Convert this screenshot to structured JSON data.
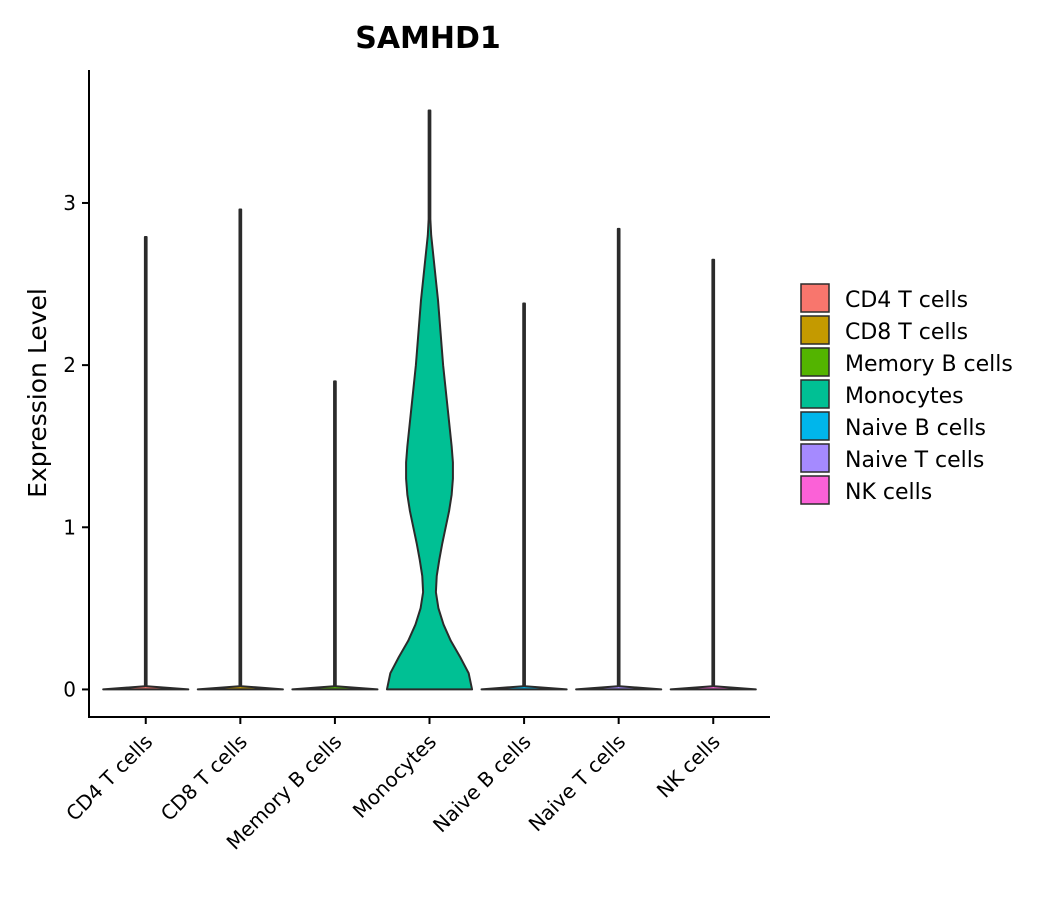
{
  "chart_data": {
    "type": "violin",
    "title": "SAMHD1",
    "xlabel": "",
    "ylabel": "Expression Level",
    "ylim": [
      -0.17,
      3.82
    ],
    "yticks": [
      0,
      1,
      2,
      3
    ],
    "ytick_labels": [
      "0",
      "1",
      "2",
      "3"
    ],
    "legend_position": "right",
    "categories": [
      "CD4 T cells",
      "CD8 T cells",
      "Memory B cells",
      "Monocytes",
      "Naive B cells",
      "Naive T cells",
      "NK cells"
    ],
    "colors": [
      "#F8766D",
      "#C49A00",
      "#53B400",
      "#00C094",
      "#00B6EB",
      "#A58AFF",
      "#FB61D7"
    ],
    "max_values": [
      2.79,
      2.96,
      1.9,
      3.57,
      2.38,
      2.84,
      2.65
    ],
    "density_profiles": [
      [
        [
          0,
          1.0
        ],
        [
          0.02,
          0.02
        ],
        [
          2.79,
          0.02
        ]
      ],
      [
        [
          0,
          1.0
        ],
        [
          0.02,
          0.02
        ],
        [
          2.96,
          0.02
        ]
      ],
      [
        [
          0,
          1.0
        ],
        [
          0.02,
          0.02
        ],
        [
          1.9,
          0.02
        ]
      ],
      [
        [
          0,
          1.0
        ],
        [
          0.1,
          0.92
        ],
        [
          0.2,
          0.72
        ],
        [
          0.3,
          0.5
        ],
        [
          0.4,
          0.33
        ],
        [
          0.5,
          0.21
        ],
        [
          0.6,
          0.15
        ],
        [
          0.7,
          0.17
        ],
        [
          0.8,
          0.23
        ],
        [
          0.9,
          0.3
        ],
        [
          1.0,
          0.38
        ],
        [
          1.1,
          0.46
        ],
        [
          1.2,
          0.52
        ],
        [
          1.3,
          0.55
        ],
        [
          1.4,
          0.55
        ],
        [
          1.5,
          0.52
        ],
        [
          1.6,
          0.48
        ],
        [
          1.7,
          0.44
        ],
        [
          1.8,
          0.4
        ],
        [
          1.9,
          0.36
        ],
        [
          2.0,
          0.32
        ],
        [
          2.1,
          0.29
        ],
        [
          2.2,
          0.26
        ],
        [
          2.3,
          0.23
        ],
        [
          2.4,
          0.2
        ],
        [
          2.5,
          0.16
        ],
        [
          2.6,
          0.12
        ],
        [
          2.7,
          0.08
        ],
        [
          2.8,
          0.04
        ],
        [
          2.9,
          0.02
        ],
        [
          3.57,
          0.02
        ]
      ],
      [
        [
          0,
          1.0
        ],
        [
          0.02,
          0.02
        ],
        [
          2.38,
          0.02
        ]
      ],
      [
        [
          0,
          1.0
        ],
        [
          0.02,
          0.02
        ],
        [
          2.84,
          0.02
        ]
      ],
      [
        [
          0,
          1.0
        ],
        [
          0.02,
          0.02
        ],
        [
          2.65,
          0.02
        ]
      ]
    ]
  }
}
